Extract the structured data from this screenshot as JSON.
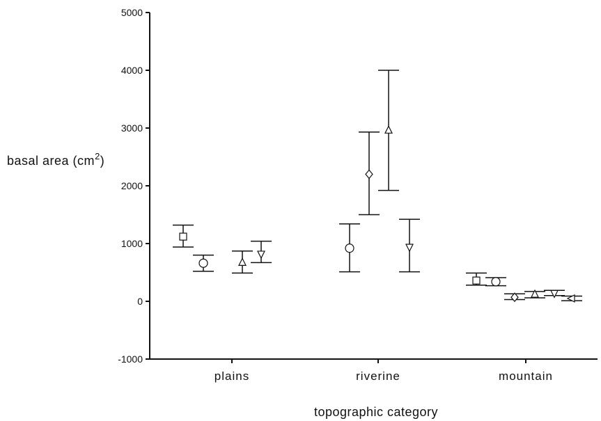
{
  "chart_data": {
    "type": "scatter",
    "xlabel": "topographic category",
    "ylabel": "basal area (cm",
    "ylabel_superscript": "2",
    "ylabel_suffix": ")",
    "ylim": [
      -1000,
      5000
    ],
    "yticks": [
      -1000,
      0,
      1000,
      2000,
      3000,
      4000,
      5000
    ],
    "ytick_labels": [
      "-1000",
      "0",
      "1000",
      "2000",
      "3000",
      "4000",
      "5000"
    ],
    "categories": [
      "plains",
      "riverine",
      "mountain"
    ],
    "grid": false,
    "series": [
      {
        "marker": "square",
        "points": [
          {
            "category": "plains",
            "value": 1120,
            "low": 940,
            "high": 1320
          },
          {
            "category": "mountain",
            "value": 360,
            "low": 280,
            "high": 490
          }
        ]
      },
      {
        "marker": "circle",
        "points": [
          {
            "category": "plains",
            "value": 660,
            "low": 520,
            "high": 800
          },
          {
            "category": "riverine",
            "value": 920,
            "low": 510,
            "high": 1340
          },
          {
            "category": "mountain",
            "value": 340,
            "low": 270,
            "high": 410
          }
        ]
      },
      {
        "marker": "diamond",
        "points": [
          {
            "category": "riverine",
            "value": 2200,
            "low": 1500,
            "high": 2930
          },
          {
            "category": "mountain",
            "value": 70,
            "low": 30,
            "high": 130
          }
        ]
      },
      {
        "marker": "triangle-up",
        "points": [
          {
            "category": "plains",
            "value": 670,
            "low": 490,
            "high": 870
          },
          {
            "category": "riverine",
            "value": 2960,
            "low": 1920,
            "high": 4000
          },
          {
            "category": "mountain",
            "value": 120,
            "low": 60,
            "high": 170
          }
        ]
      },
      {
        "marker": "triangle-down",
        "points": [
          {
            "category": "plains",
            "value": 820,
            "low": 670,
            "high": 1040
          },
          {
            "category": "riverine",
            "value": 940,
            "low": 510,
            "high": 1420
          },
          {
            "category": "mountain",
            "value": 140,
            "low": 100,
            "high": 190
          }
        ]
      },
      {
        "marker": "triangle-left",
        "points": [
          {
            "category": "mountain",
            "value": 50,
            "low": 10,
            "high": 90
          }
        ]
      }
    ]
  }
}
